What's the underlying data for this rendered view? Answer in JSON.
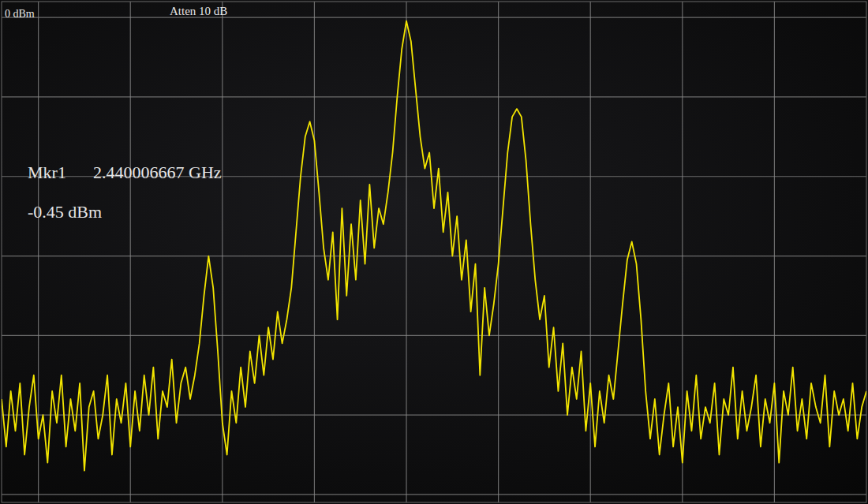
{
  "chart_data": {
    "type": "line",
    "annotations": [
      "0 dBm",
      "Atten 10 dB",
      "Mkr1",
      "2.440006667 GHz",
      "-0.45 dBm"
    ],
    "color": "#f2e400",
    "grid": true,
    "tick_labels": false,
    "xlim": [
      2.4356,
      2.445
    ],
    "xticks": [
      2.436,
      2.437,
      2.438,
      2.439,
      2.44,
      2.441,
      2.442,
      2.443,
      2.444
    ],
    "ylim": [
      -61,
      2
    ],
    "yticks": [
      0,
      -10,
      -20,
      -30,
      -40,
      -50,
      -60
    ],
    "x": [
      2.4356,
      2.43565,
      2.4357,
      2.43575,
      2.4358,
      2.43585,
      2.4359,
      2.43595,
      2.436,
      2.43605,
      2.4361,
      2.43615,
      2.4362,
      2.43625,
      2.4363,
      2.43635,
      2.4364,
      2.43645,
      2.4365,
      2.43655,
      2.4366,
      2.43665,
      2.4367,
      2.43675,
      2.4368,
      2.43685,
      2.4369,
      2.43695,
      2.437,
      2.43705,
      2.4371,
      2.43715,
      2.4372,
      2.43725,
      2.4373,
      2.43735,
      2.4374,
      2.43745,
      2.4375,
      2.43755,
      2.4376,
      2.43765,
      2.4377,
      2.43775,
      2.4378,
      2.43785,
      2.4379,
      2.43795,
      2.438,
      2.43805,
      2.4381,
      2.43815,
      2.4382,
      2.43825,
      2.4383,
      2.43835,
      2.4384,
      2.43845,
      2.4385,
      2.43855,
      2.4386,
      2.43865,
      2.4387,
      2.43875,
      2.4388,
      2.43885,
      2.4389,
      2.43895,
      2.439,
      2.43905,
      2.4391,
      2.43915,
      2.4392,
      2.43925,
      2.4393,
      2.43935,
      2.4394,
      2.43945,
      2.4395,
      2.43955,
      2.4396,
      2.43965,
      2.4397,
      2.43975,
      2.4398,
      2.43985,
      2.4399,
      2.43995,
      2.44,
      2.44005,
      2.4401,
      2.44015,
      2.4402,
      2.44025,
      2.4403,
      2.44035,
      2.4404,
      2.44045,
      2.4405,
      2.44055,
      2.4406,
      2.44065,
      2.4407,
      2.44075,
      2.4408,
      2.44085,
      2.4409,
      2.44095,
      2.441,
      2.44105,
      2.4411,
      2.44115,
      2.4412,
      2.44125,
      2.4413,
      2.44135,
      2.4414,
      2.44145,
      2.4415,
      2.44155,
      2.4416,
      2.44165,
      2.4417,
      2.44175,
      2.4418,
      2.44185,
      2.4419,
      2.44195,
      2.442,
      2.44205,
      2.4421,
      2.44215,
      2.4422,
      2.44225,
      2.4423,
      2.44235,
      2.4424,
      2.44245,
      2.4425,
      2.44255,
      2.4426,
      2.44265,
      2.4427,
      2.44275,
      2.4428,
      2.44285,
      2.4429,
      2.44295,
      2.443,
      2.44305,
      2.4431,
      2.44315,
      2.4432,
      2.44325,
      2.4433,
      2.44335,
      2.4434,
      2.44345,
      2.4435,
      2.44355,
      2.4436,
      2.44365,
      2.4437,
      2.44375,
      2.4438,
      2.44385,
      2.4439,
      2.44395,
      2.444,
      2.44405,
      2.4441,
      2.44415,
      2.4442,
      2.44425,
      2.4443,
      2.44435,
      2.4444,
      2.44445,
      2.4445,
      2.44455,
      2.4446,
      2.44465,
      2.4447,
      2.44475,
      2.4448,
      2.44485,
      2.4449,
      2.44495,
      2.445
    ],
    "values": [
      -48,
      -54,
      -47,
      -52,
      -46,
      -55,
      -49,
      -45,
      -53,
      -50,
      -56,
      -47,
      -51,
      -45,
      -54,
      -48,
      -52,
      -46,
      -57,
      -49,
      -47,
      -53,
      -50,
      -45,
      -55,
      -48,
      -51,
      -46,
      -54,
      -47,
      -52,
      -45,
      -50,
      -44,
      -53,
      -47,
      -49,
      -43,
      -51,
      -46,
      -44,
      -48,
      -45,
      -41,
      -35,
      -30,
      -34,
      -42,
      -51,
      -55,
      -47,
      -51,
      -44,
      -49,
      -42,
      -46,
      -40,
      -45,
      -39,
      -43,
      -37,
      -41,
      -38,
      -34,
      -27,
      -20,
      -15,
      -13.1,
      -15.5,
      -22,
      -29,
      -33,
      -27,
      -38,
      -24,
      -35,
      -26,
      -33,
      -23,
      -31,
      -21,
      -29,
      -24,
      -26,
      -22,
      -17,
      -10,
      -4,
      -0.45,
      -3,
      -9,
      -15,
      -19,
      -17,
      -24,
      -19,
      -27,
      -22,
      -30,
      -25,
      -33,
      -28,
      -37,
      -31,
      -45,
      -34,
      -40,
      -36,
      -31,
      -24,
      -17,
      -12.5,
      -11.5,
      -12.5,
      -18,
      -26,
      -33,
      -38,
      -35,
      -44,
      -39,
      -47,
      -41,
      -50,
      -44,
      -48,
      -42,
      -52,
      -46,
      -54,
      -47,
      -51,
      -45,
      -48,
      -42,
      -36,
      -30.5,
      -28.2,
      -31,
      -38,
      -47,
      -53,
      -48,
      -55,
      -50,
      -46,
      -54,
      -49,
      -56,
      -47,
      -52,
      -45,
      -53,
      -49,
      -51,
      -46,
      -55,
      -48,
      -50,
      -44,
      -53,
      -47,
      -52,
      -49,
      -45,
      -54,
      -48,
      -51,
      -46,
      -56,
      -47,
      -50,
      -44,
      -52,
      -48,
      -53,
      -46,
      -49,
      -51,
      -45,
      -54,
      -47,
      -50,
      -48,
      -52,
      -46,
      -53,
      -49,
      -47
    ]
  }
}
